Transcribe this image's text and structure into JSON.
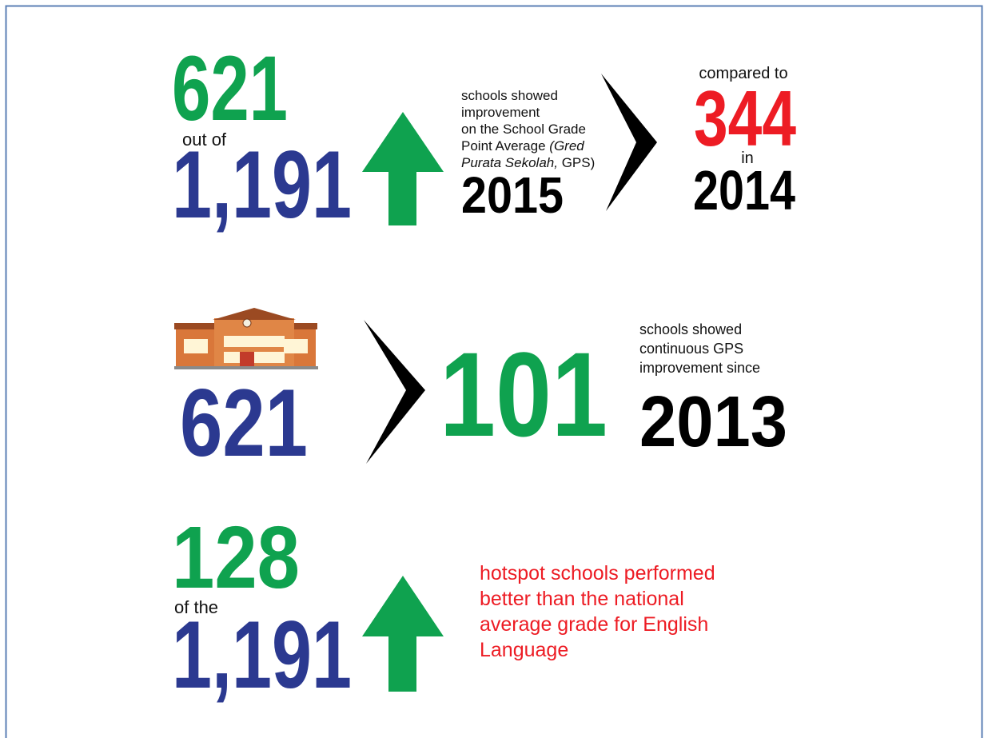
{
  "rows": [
    {
      "count": "621",
      "connector": "out of",
      "total": "1,191",
      "description": {
        "lines": [
          "schools showed",
          "improvement",
          "on the School Grade"
        ],
        "line4": [
          "Point Average",
          "(Gred"
        ],
        "line5": [
          "Purata Sekolah,",
          "GPS)"
        ]
      },
      "year": "2015",
      "comparison": {
        "prefix": "compared to",
        "count": "344",
        "connector": "in",
        "year": "2014"
      }
    },
    {
      "count": "621",
      "highlight": "101",
      "description": [
        "schools showed",
        "continuous GPS",
        "improvement since"
      ],
      "year": "2013"
    },
    {
      "count": "128",
      "connector": "of the",
      "total": "1,191",
      "description": [
        "hotspot schools performed",
        "better than the national",
        "average grade for English",
        "Language"
      ]
    }
  ]
}
